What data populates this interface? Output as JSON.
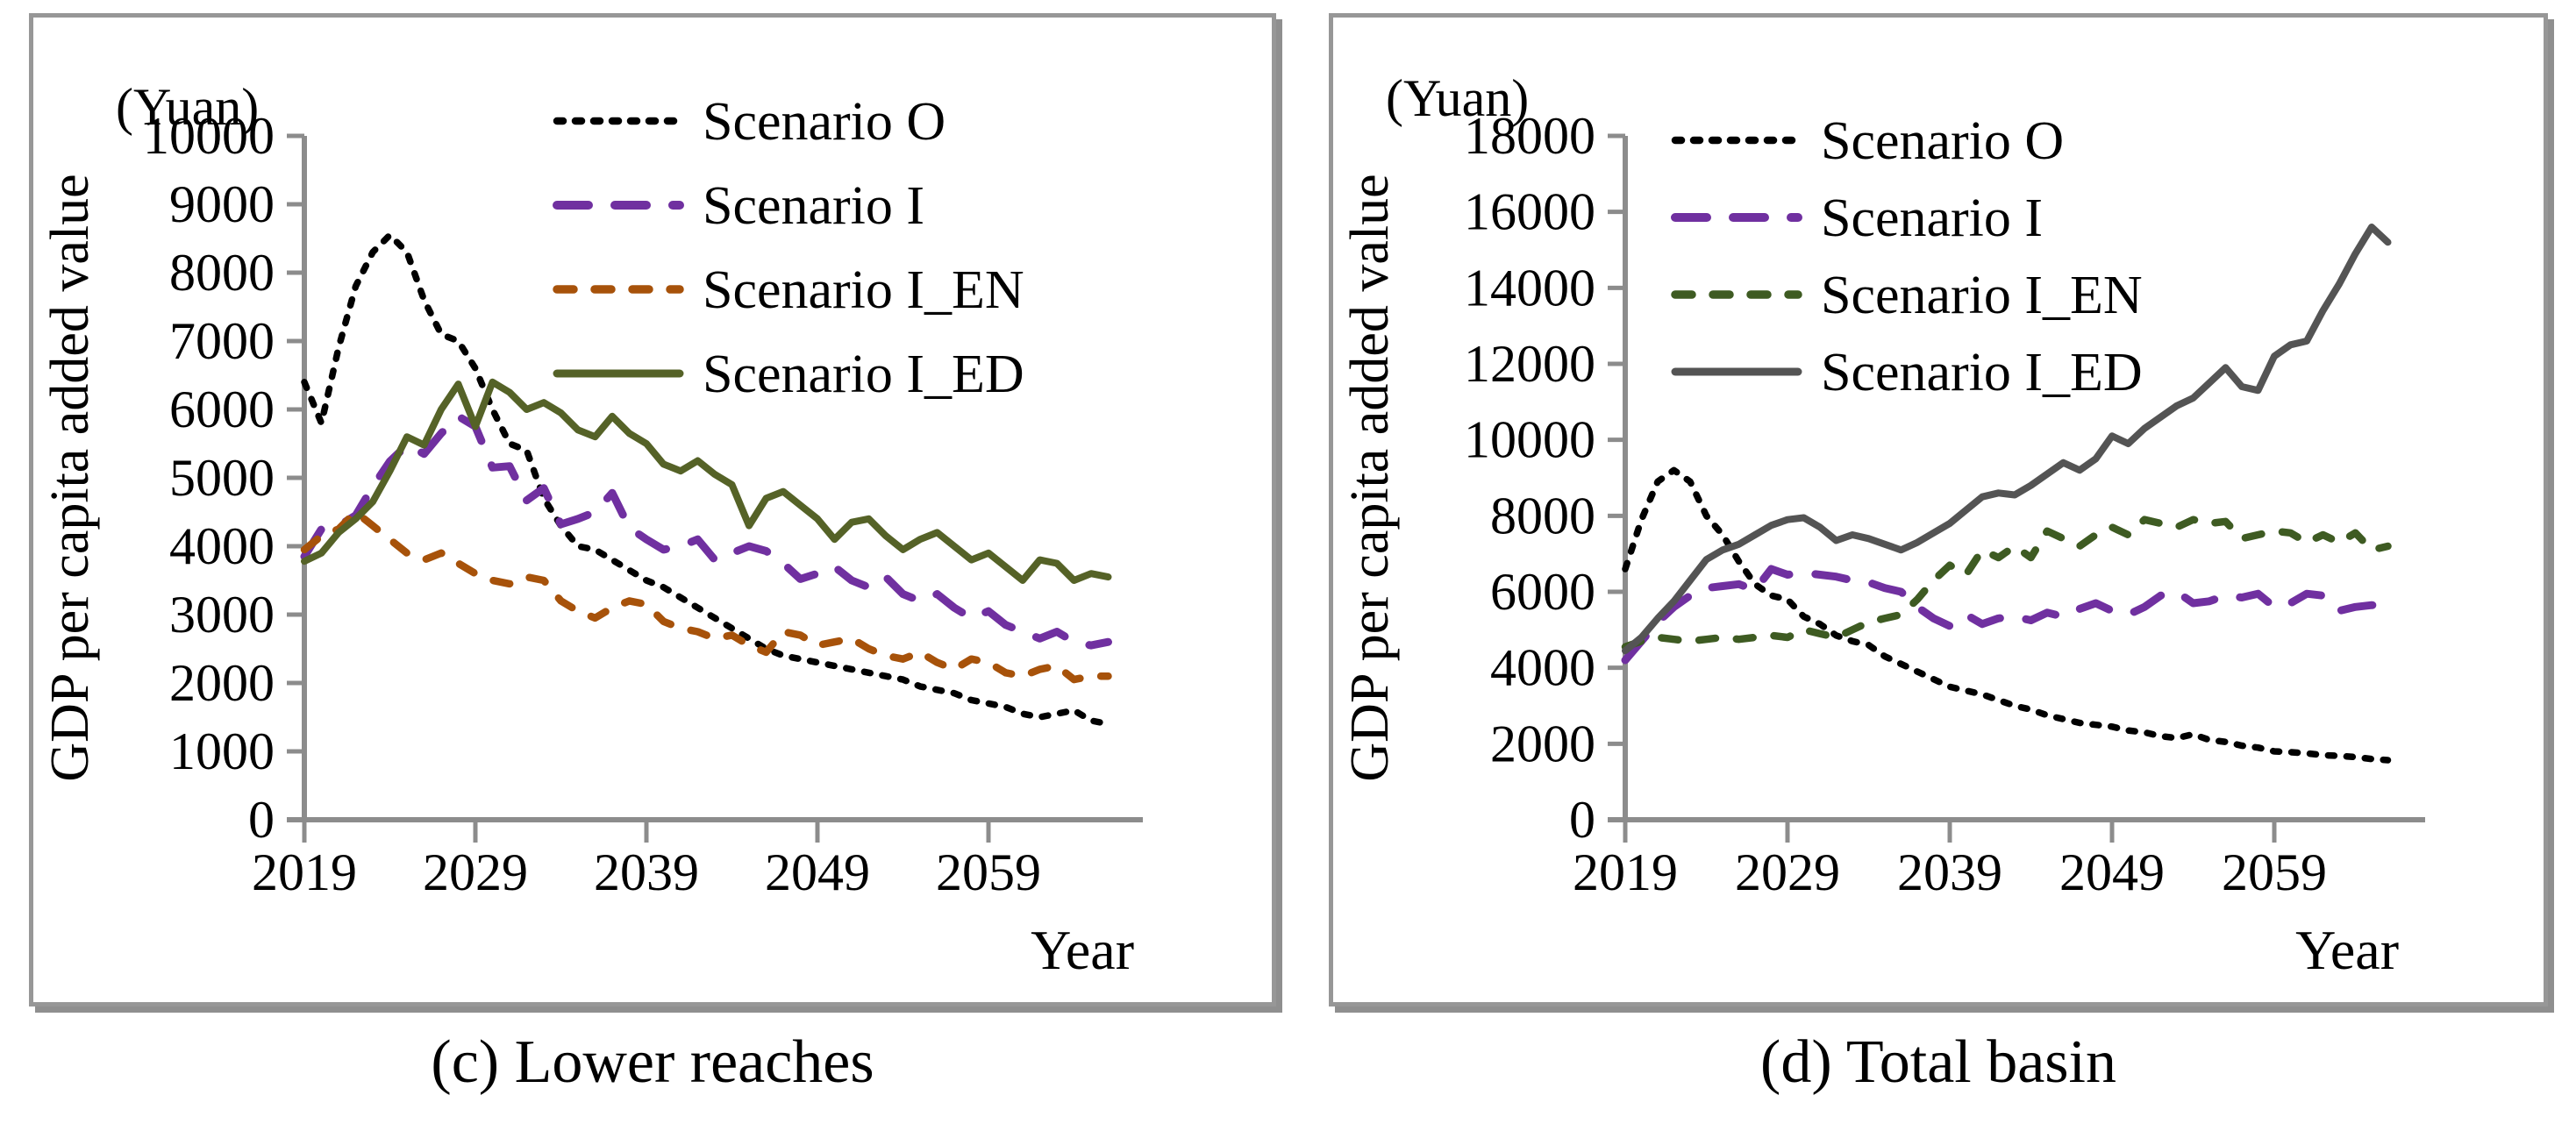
{
  "chart_data": [
    {
      "id": "lower-reaches",
      "type": "line",
      "caption": "(c) Lower reaches",
      "unit_label": "(Yuan)",
      "y_axis_title": "GDP per capita added value",
      "x_axis_title": "Year",
      "grid": false,
      "legend_position": "top-right-inside",
      "axis_color": "#8c8c8c",
      "ylim": [
        0,
        10000
      ],
      "y_tick_step": 1000,
      "y_tick_labels": [
        0,
        1000,
        2000,
        3000,
        4000,
        5000,
        6000,
        7000,
        8000,
        9000,
        10000
      ],
      "x_tick_labels": [
        2019,
        2029,
        2039,
        2049,
        2059
      ],
      "x": [
        2019,
        2020,
        2021,
        2022,
        2023,
        2024,
        2025,
        2026,
        2027,
        2028,
        2029,
        2030,
        2031,
        2032,
        2033,
        2034,
        2035,
        2036,
        2037,
        2038,
        2039,
        2040,
        2041,
        2042,
        2043,
        2044,
        2045,
        2046,
        2047,
        2048,
        2049,
        2050,
        2051,
        2052,
        2053,
        2054,
        2055,
        2056,
        2057,
        2058,
        2059,
        2060,
        2061,
        2062,
        2063,
        2064,
        2065,
        2066
      ],
      "series": [
        {
          "name": "Scenario O",
          "color": "#000000",
          "dash": "dotted",
          "values": [
            6400,
            5800,
            6900,
            7800,
            8300,
            8550,
            8300,
            7600,
            7100,
            7000,
            6600,
            6000,
            5500,
            5400,
            4700,
            4300,
            4000,
            3950,
            3800,
            3650,
            3500,
            3400,
            3250,
            3100,
            2950,
            2800,
            2650,
            2500,
            2400,
            2350,
            2300,
            2250,
            2200,
            2150,
            2100,
            2050,
            1950,
            1900,
            1850,
            1750,
            1700,
            1650,
            1550,
            1500,
            1550,
            1600,
            1450,
            1400
          ]
        },
        {
          "name": "Scenario I",
          "color": "#7030a0",
          "dash": "long-dash",
          "values": [
            3850,
            4250,
            4300,
            4450,
            4870,
            5240,
            5480,
            5350,
            5650,
            5900,
            5750,
            5150,
            5170,
            4670,
            4850,
            4320,
            4400,
            4500,
            4780,
            4270,
            4100,
            3950,
            4000,
            4100,
            3800,
            3900,
            4000,
            3930,
            3750,
            3520,
            3600,
            3700,
            3500,
            3400,
            3550,
            3300,
            3200,
            3300,
            3100,
            2950,
            3050,
            2850,
            2750,
            2650,
            2750,
            2600,
            2550,
            2600
          ]
        },
        {
          "name": "Scenario I_EN",
          "color": "#a7520a",
          "dash": "dash",
          "values": [
            3950,
            4150,
            4250,
            4500,
            4300,
            4100,
            3900,
            3800,
            3900,
            3750,
            3600,
            3500,
            3450,
            3550,
            3500,
            3200,
            3050,
            2950,
            3100,
            3200,
            3150,
            2900,
            2800,
            2750,
            2650,
            2700,
            2550,
            2450,
            2750,
            2700,
            2550,
            2600,
            2650,
            2500,
            2400,
            2350,
            2450,
            2300,
            2200,
            2350,
            2300,
            2150,
            2100,
            2200,
            2250,
            2050,
            2100,
            2100
          ]
        },
        {
          "name": "Scenario I_ED",
          "color": "#556227",
          "dash": "solid",
          "values": [
            3780,
            3900,
            4200,
            4400,
            4650,
            5100,
            5600,
            5480,
            6000,
            6370,
            5750,
            6400,
            6250,
            6000,
            6100,
            5950,
            5700,
            5600,
            5900,
            5650,
            5500,
            5200,
            5100,
            5250,
            5050,
            4900,
            4300,
            4700,
            4800,
            4600,
            4400,
            4100,
            4350,
            4400,
            4150,
            3950,
            4100,
            4200,
            4000,
            3800,
            3900,
            3700,
            3500,
            3800,
            3750,
            3500,
            3600,
            3550
          ]
        }
      ]
    },
    {
      "id": "total-basin",
      "type": "line",
      "caption": "(d) Total basin",
      "unit_label": "(Yuan)",
      "y_axis_title": "GDP per capita added value",
      "x_axis_title": "Year",
      "grid": false,
      "legend_position": "top-right-inside",
      "axis_color": "#8c8c8c",
      "ylim": [
        0,
        18000
      ],
      "y_tick_step": 2000,
      "y_tick_labels": [
        0,
        2000,
        4000,
        6000,
        8000,
        10000,
        12000,
        14000,
        16000,
        18000
      ],
      "x_tick_labels": [
        2019,
        2029,
        2039,
        2049,
        2059
      ],
      "x": [
        2019,
        2020,
        2021,
        2022,
        2023,
        2024,
        2025,
        2026,
        2027,
        2028,
        2029,
        2030,
        2031,
        2032,
        2033,
        2034,
        2035,
        2036,
        2037,
        2038,
        2039,
        2040,
        2041,
        2042,
        2043,
        2044,
        2045,
        2046,
        2047,
        2048,
        2049,
        2050,
        2051,
        2052,
        2053,
        2054,
        2055,
        2056,
        2057,
        2058,
        2059,
        2060,
        2061,
        2062,
        2063,
        2064,
        2065,
        2066
      ],
      "series": [
        {
          "name": "Scenario O",
          "color": "#000000",
          "dash": "dotted",
          "values": [
            6600,
            7900,
            8900,
            9200,
            8900,
            8000,
            7500,
            6800,
            6200,
            5900,
            5800,
            5350,
            5150,
            4850,
            4700,
            4600,
            4300,
            4100,
            3900,
            3700,
            3500,
            3400,
            3300,
            3150,
            3000,
            2900,
            2750,
            2650,
            2550,
            2500,
            2450,
            2350,
            2300,
            2200,
            2150,
            2250,
            2100,
            2050,
            1950,
            1900,
            1800,
            1780,
            1750,
            1700,
            1680,
            1650,
            1600,
            1570
          ]
        },
        {
          "name": "Scenario I",
          "color": "#7030a0",
          "dash": "long-dash",
          "values": [
            4200,
            4700,
            5200,
            5600,
            5900,
            6100,
            6150,
            6200,
            6050,
            6600,
            6450,
            6500,
            6450,
            6400,
            6300,
            6250,
            6100,
            6000,
            5600,
            5300,
            5100,
            5400,
            5150,
            5300,
            5350,
            5250,
            5450,
            5350,
            5550,
            5700,
            5500,
            5400,
            5600,
            5900,
            6000,
            5700,
            5750,
            5900,
            5850,
            5950,
            5600,
            5700,
            5950,
            5900,
            5500,
            5600,
            5650,
            5650
          ]
        },
        {
          "name": "Scenario I_EN",
          "color": "#3e5b22",
          "dash": "dash",
          "values": [
            4550,
            4700,
            4800,
            4750,
            4700,
            4750,
            4800,
            4750,
            4800,
            4850,
            4800,
            5000,
            4900,
            4800,
            5000,
            5200,
            5300,
            5400,
            5800,
            6300,
            6700,
            6450,
            7100,
            6900,
            7200,
            6900,
            7600,
            7400,
            7200,
            7500,
            7700,
            7500,
            7900,
            7800,
            7700,
            7900,
            7800,
            7850,
            7400,
            7500,
            7600,
            7550,
            7300,
            7500,
            7300,
            7550,
            7100,
            7200
          ]
        },
        {
          "name": "Scenario I_ED",
          "color": "#545454",
          "dash": "solid",
          "values": [
            4450,
            4800,
            5300,
            5750,
            6300,
            6850,
            7100,
            7250,
            7500,
            7750,
            7900,
            7950,
            7700,
            7350,
            7500,
            7400,
            7250,
            7100,
            7300,
            7550,
            7800,
            8150,
            8500,
            8600,
            8550,
            8800,
            9100,
            9400,
            9200,
            9500,
            10100,
            9900,
            10300,
            10600,
            10900,
            11100,
            11500,
            11900,
            11400,
            11300,
            12200,
            12500,
            12600,
            13400,
            14100,
            14900,
            15600,
            15200
          ]
        }
      ]
    }
  ]
}
